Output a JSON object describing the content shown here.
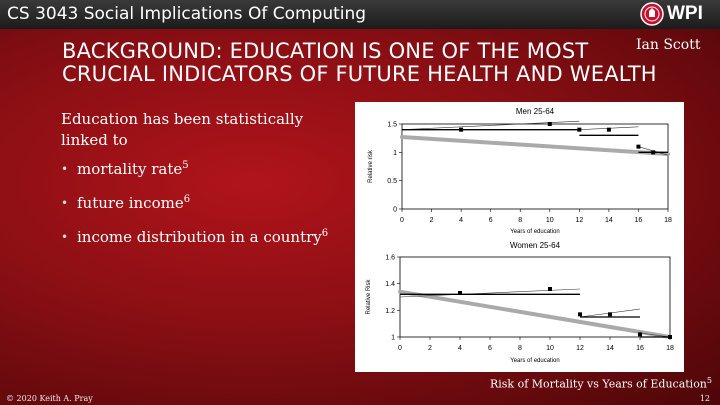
{
  "header": {
    "course": "CS 3043 Social Implications Of Computing",
    "logo_text": "WPI"
  },
  "slide": {
    "author": "Ian Scott",
    "title_line1": "BACKGROUND: EDUCATION IS ONE OF THE MOST",
    "title_line2": "CRUCIAL INDICATORS OF FUTURE HEALTH AND WEALTH",
    "intro": "Education has been statistically linked to",
    "bullets": [
      {
        "text": "mortality rate",
        "ref": "5"
      },
      {
        "text": "future income",
        "ref": "6"
      },
      {
        "text": "income distribution in a country",
        "ref": "6"
      }
    ],
    "caption": "Risk of Mortality vs Years of Education",
    "caption_ref": "5",
    "copyright": "© 2020 Keith A. Pray",
    "page_number": "12"
  },
  "chart_data": [
    {
      "type": "scatter",
      "title": "Men 25-64",
      "xlabel": "Years of education",
      "ylabel": "Relative risk",
      "xlim": [
        0,
        18
      ],
      "ylim": [
        0,
        1.5
      ],
      "x_ticks": [
        "0",
        "2",
        "4",
        "6",
        "8",
        "10",
        "12",
        "14",
        "16",
        "18"
      ],
      "y_ticks": [
        "0",
        "0.5",
        "1",
        "1.5"
      ],
      "points": [
        {
          "x": 4,
          "y": 1.4
        },
        {
          "x": 10,
          "y": 1.5
        },
        {
          "x": 12,
          "y": 1.4
        },
        {
          "x": 14,
          "y": 1.4
        },
        {
          "x": 16,
          "y": 1.1
        },
        {
          "x": 17,
          "y": 1.0
        }
      ],
      "step_segments": [
        {
          "x": [
            0,
            12
          ],
          "y": [
            1.4,
            1.4
          ]
        },
        {
          "x": [
            12,
            16
          ],
          "y": [
            1.3,
            1.3
          ]
        },
        {
          "x": [
            16,
            18
          ],
          "y": [
            1.0,
            1.0
          ]
        }
      ],
      "trend_segments": [
        {
          "x": [
            0,
            12
          ],
          "y": [
            1.4,
            1.55
          ]
        },
        {
          "x": [
            12,
            16
          ],
          "y": [
            1.4,
            1.45
          ]
        },
        {
          "x": [
            16,
            18
          ],
          "y": [
            1.1,
            0.95
          ]
        }
      ],
      "fit_line": {
        "x": [
          0,
          18
        ],
        "y": [
          1.27,
          0.97
        ]
      }
    },
    {
      "type": "scatter",
      "title": "Women 25-64",
      "xlabel": "Years of education",
      "ylabel": "Relative Risk",
      "xlim": [
        0,
        18
      ],
      "ylim": [
        1,
        1.6
      ],
      "x_ticks": [
        "0",
        "2",
        "4",
        "6",
        "8",
        "10",
        "12",
        "14",
        "16",
        "18"
      ],
      "y_ticks": [
        "1",
        "1.2",
        "1.4",
        "1.6"
      ],
      "points": [
        {
          "x": 4,
          "y": 1.33
        },
        {
          "x": 10,
          "y": 1.36
        },
        {
          "x": 12,
          "y": 1.17
        },
        {
          "x": 14,
          "y": 1.17
        },
        {
          "x": 16,
          "y": 1.02
        },
        {
          "x": 18,
          "y": 1.0
        }
      ],
      "step_segments": [
        {
          "x": [
            0,
            12
          ],
          "y": [
            1.32,
            1.32
          ]
        },
        {
          "x": [
            12,
            16
          ],
          "y": [
            1.15,
            1.15
          ]
        },
        {
          "x": [
            16,
            18
          ],
          "y": [
            1.0,
            1.0
          ]
        }
      ],
      "trend_segments": [
        {
          "x": [
            0,
            12
          ],
          "y": [
            1.3,
            1.36
          ]
        },
        {
          "x": [
            12,
            16
          ],
          "y": [
            1.15,
            1.21
          ]
        },
        {
          "x": [
            16,
            18
          ],
          "y": [
            1.03,
            1.0
          ]
        }
      ],
      "fit_line": {
        "x": [
          0,
          18
        ],
        "y": [
          1.34,
          1.0
        ]
      }
    }
  ]
}
